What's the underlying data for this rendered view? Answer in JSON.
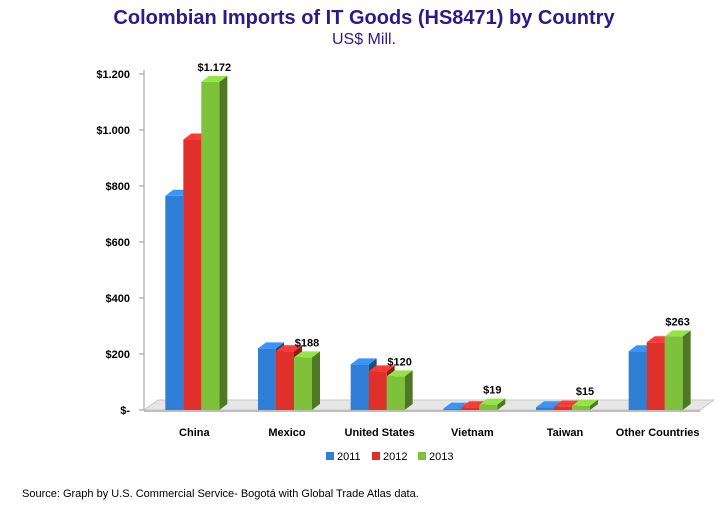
{
  "chart_data": {
    "type": "bar",
    "title": "Colombian Imports of IT Goods (HS8471) by Country",
    "subtitle": "US$ Mill.",
    "categories": [
      "China",
      "Mexico",
      "United States",
      "Vietnam",
      "Taiwan",
      "Other Countries"
    ],
    "series": [
      {
        "name": "2011",
        "color": "#2f7fd6",
        "values": [
          765,
          220,
          163,
          5,
          10,
          210
        ]
      },
      {
        "name": "2012",
        "color": "#e0302c",
        "values": [
          966,
          210,
          138,
          10,
          12,
          242
        ]
      },
      {
        "name": "2013",
        "color": "#7dc23a",
        "values": [
          1172,
          188,
          120,
          19,
          15,
          263
        ]
      }
    ],
    "data_labels": [
      {
        "category": "China",
        "series": "2013",
        "text": "$1.172"
      },
      {
        "category": "Mexico",
        "series": "2013",
        "text": "$188"
      },
      {
        "category": "United States",
        "series": "2013",
        "text": "$120"
      },
      {
        "category": "Vietnam",
        "series": "2013",
        "text": "$19"
      },
      {
        "category": "Taiwan",
        "series": "2013",
        "text": "$15"
      },
      {
        "category": "Other Countries",
        "series": "2013",
        "text": "$263"
      }
    ],
    "y_ticks": [
      {
        "value": 0,
        "label": "$-"
      },
      {
        "value": 200,
        "label": "$200"
      },
      {
        "value": 400,
        "label": "$400"
      },
      {
        "value": 600,
        "label": "$600"
      },
      {
        "value": 800,
        "label": "$800"
      },
      {
        "value": 1000,
        "label": "$1.000"
      },
      {
        "value": 1200,
        "label": "$1.200"
      }
    ],
    "ylim": [
      0,
      1200
    ],
    "grid": false,
    "legend_position": "bottom"
  },
  "source_note": "Source: Graph by U.S. Commercial Service- Bogotá with Global Trade Atlas data."
}
